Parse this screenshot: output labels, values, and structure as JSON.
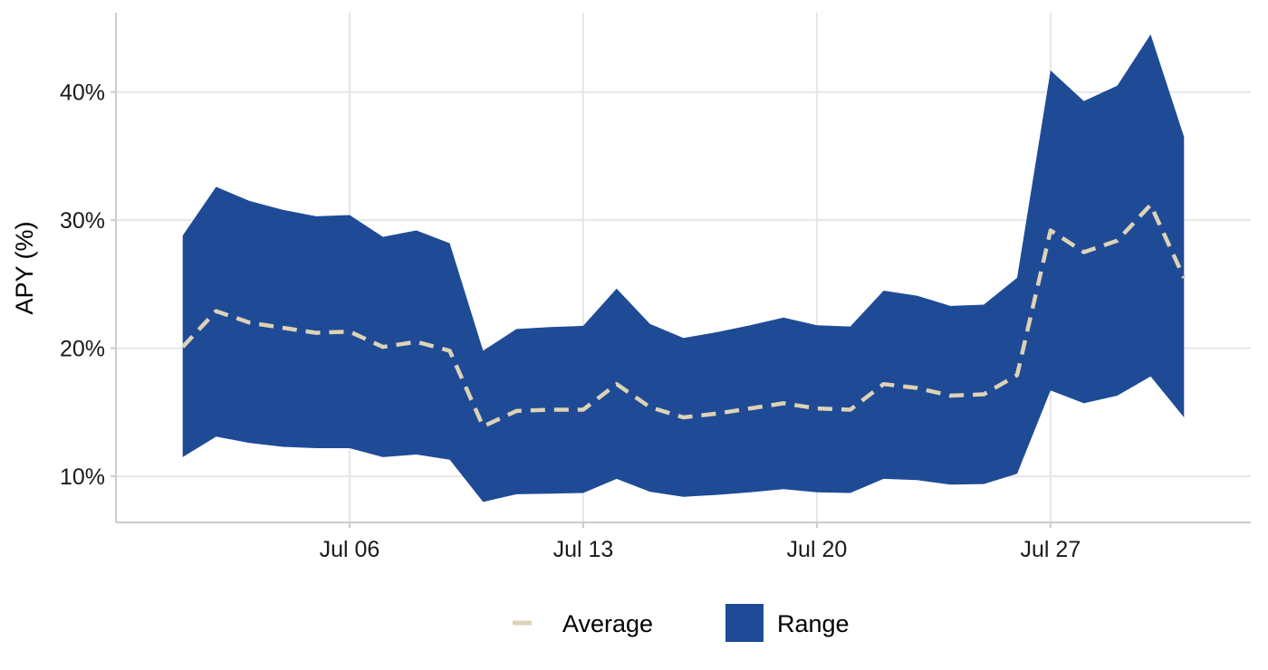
{
  "chart_data": {
    "type": "area",
    "title": "",
    "xlabel": "",
    "ylabel": "APY (%)",
    "x_tick_labels": [
      "Jul 06",
      "Jul 13",
      "Jul 20",
      "Jul 27"
    ],
    "x_tick_dates": [
      "2024-07-06",
      "2024-07-13",
      "2024-07-20",
      "2024-07-27"
    ],
    "y_tick_labels": [
      "10%",
      "20%",
      "30%",
      "40%"
    ],
    "y_tick_values": [
      10,
      20,
      30,
      40
    ],
    "xlim": [
      "2024-06-29",
      "2024-08-02"
    ],
    "ylim": [
      6.4,
      46.2
    ],
    "grid": true,
    "legend_position": "bottom",
    "legend": [
      {
        "label": "Average",
        "style": "dashed-line",
        "color": "#ded3b5"
      },
      {
        "label": "Range",
        "style": "filled-box",
        "color": "#1f4b96"
      }
    ],
    "colors": {
      "range_fill": "#1f4b96",
      "average_line": "#ded3b5"
    },
    "x": [
      "2024-07-01",
      "2024-07-02",
      "2024-07-03",
      "2024-07-04",
      "2024-07-05",
      "2024-07-06",
      "2024-07-07",
      "2024-07-08",
      "2024-07-09",
      "2024-07-10",
      "2024-07-11",
      "2024-07-12",
      "2024-07-13",
      "2024-07-14",
      "2024-07-15",
      "2024-07-16",
      "2024-07-17",
      "2024-07-18",
      "2024-07-19",
      "2024-07-20",
      "2024-07-21",
      "2024-07-22",
      "2024-07-23",
      "2024-07-24",
      "2024-07-25",
      "2024-07-26",
      "2024-07-27",
      "2024-07-28",
      "2024-07-29",
      "2024-07-30",
      "2024-07-31"
    ],
    "series": [
      {
        "name": "Range",
        "kind": "band",
        "lower": [
          11.5,
          13.1,
          12.6,
          12.3,
          12.2,
          12.2,
          11.5,
          11.7,
          11.3,
          8.0,
          8.6,
          8.65,
          8.7,
          9.8,
          8.8,
          8.4,
          8.55,
          8.75,
          9.0,
          8.75,
          8.7,
          9.8,
          9.7,
          9.35,
          9.4,
          10.2,
          16.7,
          15.7,
          16.3,
          17.8,
          14.6
        ],
        "upper": [
          28.8,
          32.6,
          31.5,
          30.8,
          30.3,
          30.4,
          28.7,
          29.2,
          28.2,
          19.8,
          21.5,
          21.65,
          21.75,
          24.65,
          21.9,
          20.8,
          21.25,
          21.8,
          22.4,
          21.8,
          21.7,
          24.5,
          24.1,
          23.3,
          23.4,
          25.5,
          41.7,
          39.3,
          40.5,
          44.5,
          36.5
        ]
      },
      {
        "name": "Average",
        "kind": "line",
        "values": [
          20.1,
          22.9,
          22.0,
          21.6,
          21.2,
          21.3,
          20.1,
          20.5,
          19.8,
          13.9,
          15.1,
          15.2,
          15.2,
          17.2,
          15.4,
          14.6,
          14.9,
          15.3,
          15.7,
          15.3,
          15.2,
          17.2,
          16.9,
          16.3,
          16.4,
          17.9,
          29.2,
          27.5,
          28.4,
          31.2,
          25.5
        ]
      }
    ]
  }
}
